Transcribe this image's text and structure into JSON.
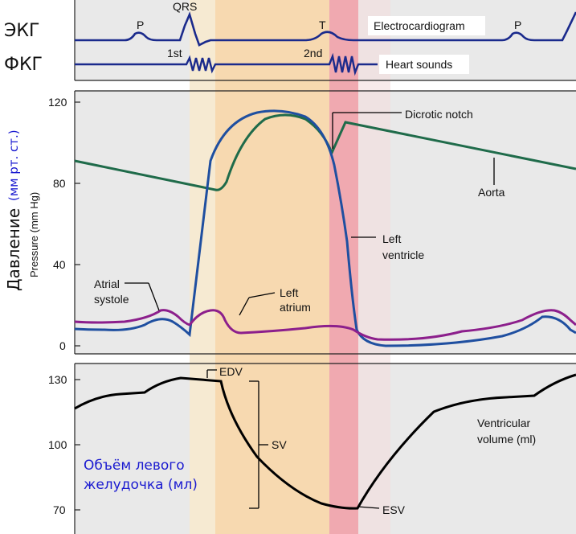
{
  "ecg_panel": {
    "row_label": "ЭКГ",
    "title": "Electrocardiogram",
    "waves": {
      "p1": "P",
      "qrs": "QRS",
      "t": "T",
      "p2": "P"
    }
  },
  "pcg_panel": {
    "row_label": "ФКГ",
    "title": "Heart sounds",
    "sounds": {
      "first": "1st",
      "second": "2nd"
    }
  },
  "pressure_panel": {
    "ylabel_en": "Pressure (mm Hg)",
    "ylabel_ru_main": "Давление",
    "ylabel_ru_units": "(мм рт. ст.)",
    "ticks": [
      "120",
      "80",
      "40",
      "0"
    ],
    "annotations": {
      "dicrotic_notch": "Dicrotic notch",
      "aorta": "Aorta",
      "left_ventricle_1": "Left",
      "left_ventricle_2": "ventricle",
      "left_atrium_1": "Left",
      "left_atrium_2": "atrium",
      "atrial_systole_1": "Atrial",
      "atrial_systole_2": "systole"
    }
  },
  "volume_panel": {
    "ticks": [
      "130",
      "100",
      "70"
    ],
    "edv": "EDV",
    "sv": "SV",
    "esv": "ESV",
    "title_1": "Ventricular",
    "title_2": "volume (ml)",
    "ru_1": "Объём левого",
    "ru_2": "желудочка (мл)"
  },
  "colors": {
    "ecg": "#1a2a8c",
    "aorta": "#1f6b4a",
    "ventricle": "#1f4fa0",
    "atrium": "#8c1f8c",
    "volume": "#000000",
    "ru_label": "#1a1ad0",
    "band_light": "#f6ead2",
    "band_orange": "#f7d9b0",
    "band_red": "#f2b0b4",
    "band_pink": "#f7dede"
  }
}
